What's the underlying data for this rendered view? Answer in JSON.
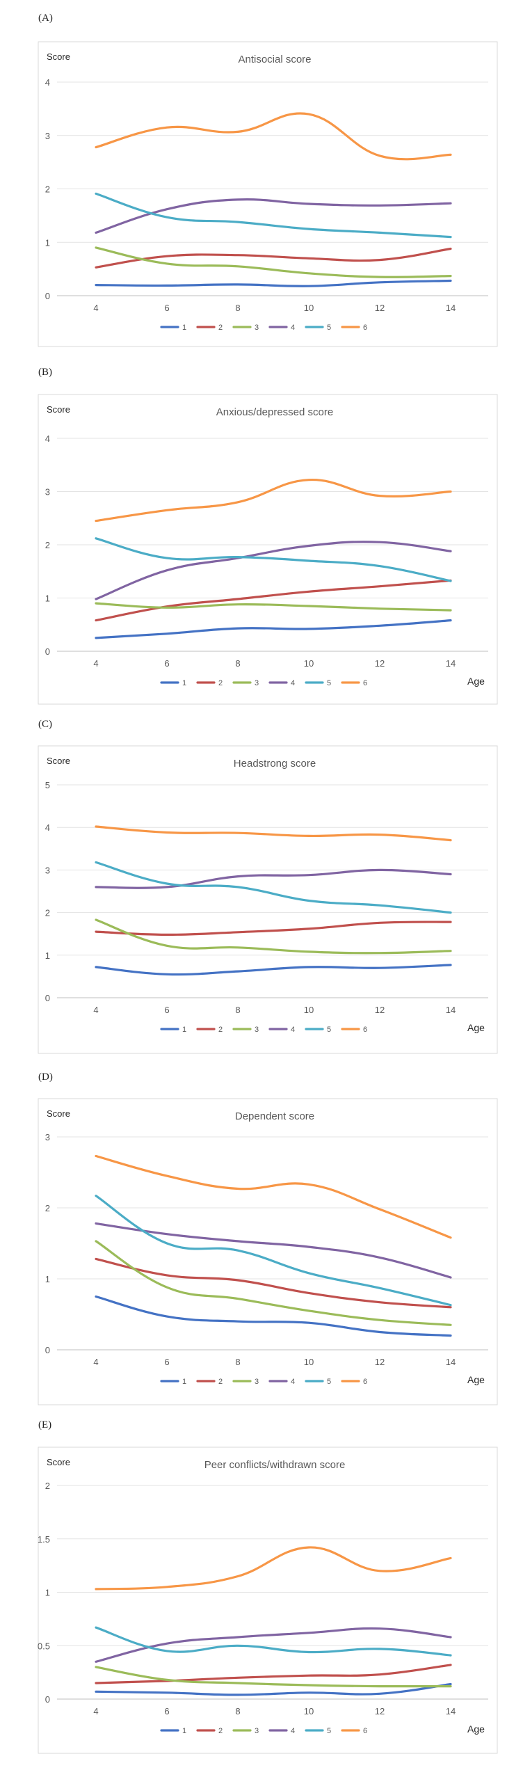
{
  "series_colors": [
    "#4472c4",
    "#c0504d",
    "#9bbb59",
    "#8064a2",
    "#4bacc6",
    "#f79646"
  ],
  "chart_data": [
    {
      "type": "line",
      "panel_label": "(A)",
      "title": "Antisocial score",
      "ylabel": "Score",
      "xlabel": "",
      "x": [
        4,
        6,
        8,
        10,
        12,
        14
      ],
      "xticks": [
        "4",
        "6",
        "8",
        "10",
        "12",
        "14"
      ],
      "ylim": [
        0,
        4
      ],
      "yticks": [
        "0",
        "1",
        "2",
        "3",
        "4"
      ],
      "grid": true,
      "legend": "bottom",
      "series": [
        {
          "name": "1",
          "values": [
            0.2,
            0.19,
            0.21,
            0.18,
            0.25,
            0.28
          ]
        },
        {
          "name": "2",
          "values": [
            0.53,
            0.74,
            0.76,
            0.7,
            0.67,
            0.88
          ]
        },
        {
          "name": "3",
          "values": [
            0.9,
            0.6,
            0.55,
            0.42,
            0.35,
            0.37
          ]
        },
        {
          "name": "4",
          "values": [
            1.18,
            1.62,
            1.8,
            1.72,
            1.69,
            1.73
          ]
        },
        {
          "name": "5",
          "values": [
            1.91,
            1.47,
            1.38,
            1.25,
            1.18,
            1.1
          ]
        },
        {
          "name": "6",
          "values": [
            2.78,
            3.15,
            3.07,
            3.4,
            2.62,
            2.64
          ]
        }
      ]
    },
    {
      "type": "line",
      "panel_label": "(B)",
      "title": "Anxious/depressed score",
      "ylabel": "Score",
      "xlabel": "Age",
      "x": [
        4,
        6,
        8,
        10,
        12,
        14
      ],
      "xticks": [
        "4",
        "6",
        "8",
        "10",
        "12",
        "14"
      ],
      "ylim": [
        0,
        4
      ],
      "yticks": [
        "0",
        "1",
        "2",
        "3",
        "4"
      ],
      "grid": true,
      "legend": "bottom",
      "series": [
        {
          "name": "1",
          "values": [
            0.25,
            0.33,
            0.43,
            0.42,
            0.48,
            0.58
          ]
        },
        {
          "name": "2",
          "values": [
            0.58,
            0.84,
            0.98,
            1.12,
            1.22,
            1.33
          ]
        },
        {
          "name": "3",
          "values": [
            0.9,
            0.82,
            0.88,
            0.85,
            0.8,
            0.77
          ]
        },
        {
          "name": "4",
          "values": [
            0.98,
            1.52,
            1.75,
            1.98,
            2.05,
            1.88
          ]
        },
        {
          "name": "5",
          "values": [
            2.12,
            1.75,
            1.77,
            1.7,
            1.6,
            1.32
          ]
        },
        {
          "name": "6",
          "values": [
            2.45,
            2.65,
            2.8,
            3.22,
            2.92,
            3.0
          ]
        }
      ]
    },
    {
      "type": "line",
      "panel_label": "(C)",
      "title": "Headstrong score",
      "ylabel": "Score",
      "xlabel": "Age",
      "x": [
        4,
        6,
        8,
        10,
        12,
        14
      ],
      "xticks": [
        "4",
        "6",
        "8",
        "10",
        "12",
        "14"
      ],
      "ylim": [
        0,
        5
      ],
      "yticks": [
        "0",
        "1",
        "2",
        "3",
        "4",
        "5"
      ],
      "grid": true,
      "legend": "bottom",
      "series": [
        {
          "name": "1",
          "values": [
            0.72,
            0.55,
            0.62,
            0.72,
            0.7,
            0.77
          ]
        },
        {
          "name": "2",
          "values": [
            1.55,
            1.48,
            1.54,
            1.62,
            1.76,
            1.78
          ]
        },
        {
          "name": "3",
          "values": [
            1.83,
            1.22,
            1.18,
            1.08,
            1.05,
            1.1
          ]
        },
        {
          "name": "4",
          "values": [
            2.6,
            2.6,
            2.85,
            2.88,
            3.0,
            2.9
          ]
        },
        {
          "name": "5",
          "values": [
            3.18,
            2.68,
            2.6,
            2.28,
            2.17,
            2.0
          ]
        },
        {
          "name": "6",
          "values": [
            4.02,
            3.88,
            3.87,
            3.8,
            3.83,
            3.7
          ]
        }
      ]
    },
    {
      "type": "line",
      "panel_label": "(D)",
      "title": "Dependent score",
      "ylabel": "Score",
      "xlabel": "Age",
      "x": [
        4,
        6,
        8,
        10,
        12,
        14
      ],
      "xticks": [
        "4",
        "6",
        "8",
        "10",
        "12",
        "14"
      ],
      "ylim": [
        0,
        3
      ],
      "yticks": [
        "0",
        "1",
        "2",
        "3"
      ],
      "grid": true,
      "legend": "bottom",
      "series": [
        {
          "name": "1",
          "values": [
            0.75,
            0.47,
            0.4,
            0.38,
            0.25,
            0.2
          ]
        },
        {
          "name": "2",
          "values": [
            1.28,
            1.05,
            0.98,
            0.8,
            0.67,
            0.6
          ]
        },
        {
          "name": "3",
          "values": [
            1.53,
            0.88,
            0.72,
            0.55,
            0.42,
            0.35
          ]
        },
        {
          "name": "4",
          "values": [
            1.78,
            1.63,
            1.53,
            1.45,
            1.3,
            1.02
          ]
        },
        {
          "name": "5",
          "values": [
            2.17,
            1.5,
            1.4,
            1.08,
            0.87,
            0.63
          ]
        },
        {
          "name": "6",
          "values": [
            2.73,
            2.45,
            2.27,
            2.33,
            1.98,
            1.58
          ]
        }
      ]
    },
    {
      "type": "line",
      "panel_label": "(E)",
      "title": "Peer conflicts/withdrawn score",
      "ylabel": "Score",
      "xlabel": "Age",
      "x": [
        4,
        6,
        8,
        10,
        12,
        14
      ],
      "xticks": [
        "4",
        "6",
        "8",
        "10",
        "12",
        "14"
      ],
      "ylim": [
        0,
        2
      ],
      "yticks": [
        "0",
        "0.5",
        "1",
        "1.5",
        "2"
      ],
      "grid": true,
      "legend": "bottom",
      "series": [
        {
          "name": "1",
          "values": [
            0.07,
            0.06,
            0.04,
            0.06,
            0.05,
            0.14
          ]
        },
        {
          "name": "2",
          "values": [
            0.15,
            0.17,
            0.2,
            0.22,
            0.23,
            0.32
          ]
        },
        {
          "name": "3",
          "values": [
            0.3,
            0.18,
            0.15,
            0.13,
            0.12,
            0.12
          ]
        },
        {
          "name": "4",
          "values": [
            0.35,
            0.52,
            0.58,
            0.62,
            0.66,
            0.58
          ]
        },
        {
          "name": "5",
          "values": [
            0.67,
            0.45,
            0.5,
            0.44,
            0.47,
            0.41
          ]
        },
        {
          "name": "6",
          "values": [
            1.03,
            1.05,
            1.15,
            1.42,
            1.2,
            1.32
          ]
        }
      ]
    }
  ]
}
